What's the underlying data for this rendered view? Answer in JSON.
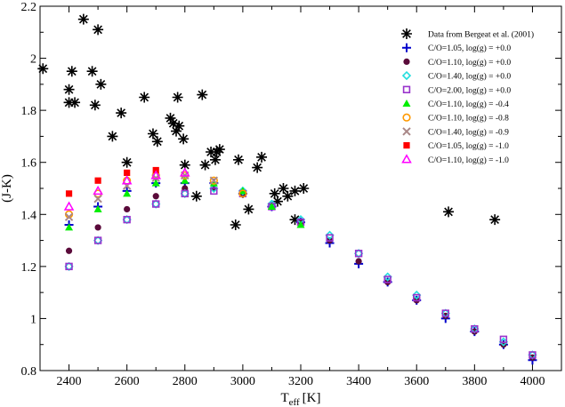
{
  "chart_data": {
    "type": "scatter",
    "title": "",
    "xlabel": "T",
    "xlabel_sub": "eff",
    "xlabel_unit": "[K]",
    "ylabel": "(J-K)",
    "xlim": [
      2300,
      4100
    ],
    "ylim": [
      0.8,
      2.2
    ],
    "xticks": [
      2400,
      2600,
      2800,
      3000,
      3200,
      3400,
      3600,
      3800,
      4000
    ],
    "yticks": [
      0.8,
      1,
      1.2,
      1.4,
      1.6,
      1.8,
      2,
      2.2
    ],
    "grid": false,
    "legend_position": "top-right",
    "series": [
      {
        "name": "Data from Bergeat et al. (2001)",
        "marker": "asterisk",
        "color": "#000000",
        "points": [
          [
            2310,
            1.96
          ],
          [
            2400,
            1.88
          ],
          [
            2400,
            1.83
          ],
          [
            2410,
            1.95
          ],
          [
            2420,
            1.83
          ],
          [
            2450,
            2.15
          ],
          [
            2480,
            1.95
          ],
          [
            2490,
            1.82
          ],
          [
            2500,
            2.11
          ],
          [
            2510,
            1.9
          ],
          [
            2550,
            1.7
          ],
          [
            2580,
            1.79
          ],
          [
            2600,
            1.6
          ],
          [
            2660,
            1.85
          ],
          [
            2690,
            1.71
          ],
          [
            2705,
            1.68
          ],
          [
            2750,
            1.77
          ],
          [
            2760,
            1.75
          ],
          [
            2770,
            1.72
          ],
          [
            2775,
            1.85
          ],
          [
            2780,
            1.74
          ],
          [
            2795,
            1.69
          ],
          [
            2800,
            1.59
          ],
          [
            2840,
            1.47
          ],
          [
            2860,
            1.86
          ],
          [
            2870,
            1.59
          ],
          [
            2890,
            1.64
          ],
          [
            2905,
            1.61
          ],
          [
            2910,
            1.64
          ],
          [
            2920,
            1.65
          ],
          [
            2975,
            1.36
          ],
          [
            2985,
            1.61
          ],
          [
            3020,
            1.42
          ],
          [
            3050,
            1.58
          ],
          [
            3065,
            1.62
          ],
          [
            3110,
            1.48
          ],
          [
            3120,
            1.45
          ],
          [
            3140,
            1.5
          ],
          [
            3155,
            1.47
          ],
          [
            3180,
            1.49
          ],
          [
            3180,
            1.38
          ],
          [
            3210,
            1.5
          ],
          [
            3710,
            1.41
          ],
          [
            3870,
            1.38
          ]
        ]
      },
      {
        "name": "C/O=1.05, log(g) = +0.0",
        "marker": "plus",
        "color": "#0000cc",
        "points": [
          [
            2400,
            1.36
          ],
          [
            2500,
            1.43
          ],
          [
            2600,
            1.49
          ],
          [
            2700,
            1.52
          ],
          [
            2800,
            1.52
          ],
          [
            2900,
            1.52
          ],
          [
            3000,
            1.48
          ],
          [
            3100,
            1.43
          ],
          [
            3200,
            1.37
          ],
          [
            3300,
            1.29
          ],
          [
            3400,
            1.21
          ],
          [
            3500,
            1.14
          ],
          [
            3600,
            1.07
          ],
          [
            3700,
            1.0
          ],
          [
            3800,
            0.95
          ],
          [
            3900,
            0.9
          ],
          [
            4000,
            0.84
          ]
        ]
      },
      {
        "name": "C/O=1.10, log(g) = +0.0",
        "marker": "circle",
        "color": "#5a0a3a",
        "points": [
          [
            2400,
            1.26
          ],
          [
            2500,
            1.35
          ],
          [
            2600,
            1.42
          ],
          [
            2700,
            1.47
          ],
          [
            2800,
            1.5
          ],
          [
            2900,
            1.5
          ],
          [
            3000,
            1.48
          ],
          [
            3100,
            1.43
          ],
          [
            3200,
            1.37
          ],
          [
            3300,
            1.3
          ],
          [
            3400,
            1.22
          ],
          [
            3500,
            1.14
          ],
          [
            3600,
            1.07
          ],
          [
            3700,
            1.01
          ],
          [
            3800,
            0.95
          ],
          [
            3900,
            0.9
          ],
          [
            4000,
            0.85
          ]
        ]
      },
      {
        "name": "C/O=1.40, log(g) = +0.0",
        "marker": "diamond-open",
        "color": "#22dddd",
        "points": [
          [
            2400,
            1.2
          ],
          [
            2500,
            1.3
          ],
          [
            2600,
            1.38
          ],
          [
            2700,
            1.44
          ],
          [
            2800,
            1.48
          ],
          [
            2900,
            1.5
          ],
          [
            3000,
            1.49
          ],
          [
            3100,
            1.44
          ],
          [
            3200,
            1.38
          ],
          [
            3300,
            1.32
          ],
          [
            3400,
            1.25
          ],
          [
            3500,
            1.16
          ],
          [
            3600,
            1.09
          ],
          [
            3700,
            1.02
          ],
          [
            3800,
            0.96
          ],
          [
            3900,
            0.91
          ],
          [
            4000,
            0.86
          ]
        ]
      },
      {
        "name": "C/O=2.00, log(g) = +0.0",
        "marker": "square-open",
        "color": "#9933cc",
        "points": [
          [
            2400,
            1.2
          ],
          [
            2500,
            1.3
          ],
          [
            2600,
            1.38
          ],
          [
            2700,
            1.44
          ],
          [
            2800,
            1.48
          ],
          [
            2900,
            1.49
          ],
          [
            3000,
            1.48
          ],
          [
            3100,
            1.43
          ],
          [
            3200,
            1.37
          ],
          [
            3300,
            1.31
          ],
          [
            3400,
            1.25
          ],
          [
            3500,
            1.15
          ],
          [
            3600,
            1.08
          ],
          [
            3700,
            1.02
          ],
          [
            3800,
            0.96
          ],
          [
            3900,
            0.92
          ],
          [
            4000,
            0.86
          ]
        ]
      },
      {
        "name": "C/O=1.10, log(g) = -0.4",
        "marker": "triangle",
        "color": "#00ee00",
        "points": [
          [
            2400,
            1.35
          ],
          [
            2500,
            1.42
          ],
          [
            2600,
            1.48
          ],
          [
            2700,
            1.52
          ],
          [
            2800,
            1.53
          ],
          [
            2900,
            1.52
          ],
          [
            3000,
            1.49
          ],
          [
            3100,
            1.43
          ],
          [
            3200,
            1.36
          ]
        ]
      },
      {
        "name": "C/O=1.10, log(g) = -0.8",
        "marker": "circle-open",
        "color": "#ff9900",
        "points": [
          [
            2400,
            1.4
          ],
          [
            2500,
            1.48
          ],
          [
            2600,
            1.53
          ],
          [
            2700,
            1.55
          ],
          [
            2800,
            1.55
          ],
          [
            2900,
            1.53
          ],
          [
            3000,
            1.48
          ]
        ]
      },
      {
        "name": "C/O=1.40, log(g) = -0.9",
        "marker": "cross",
        "color": "#aa8888",
        "points": [
          [
            2400,
            1.39
          ],
          [
            2500,
            1.46
          ],
          [
            2600,
            1.51
          ],
          [
            2700,
            1.54
          ],
          [
            2800,
            1.55
          ],
          [
            2900,
            1.53
          ]
        ]
      },
      {
        "name": "C/O=1.05, log(g) = -1.0",
        "marker": "square",
        "color": "#ff0000",
        "points": [
          [
            2400,
            1.48
          ],
          [
            2500,
            1.53
          ],
          [
            2600,
            1.56
          ],
          [
            2700,
            1.57
          ]
        ]
      },
      {
        "name": "C/O=1.10, log(g) = -1.0",
        "marker": "triangle-open",
        "color": "#ff00ff",
        "points": [
          [
            2400,
            1.43
          ],
          [
            2500,
            1.49
          ],
          [
            2600,
            1.53
          ],
          [
            2700,
            1.55
          ],
          [
            2800,
            1.56
          ]
        ]
      }
    ]
  }
}
